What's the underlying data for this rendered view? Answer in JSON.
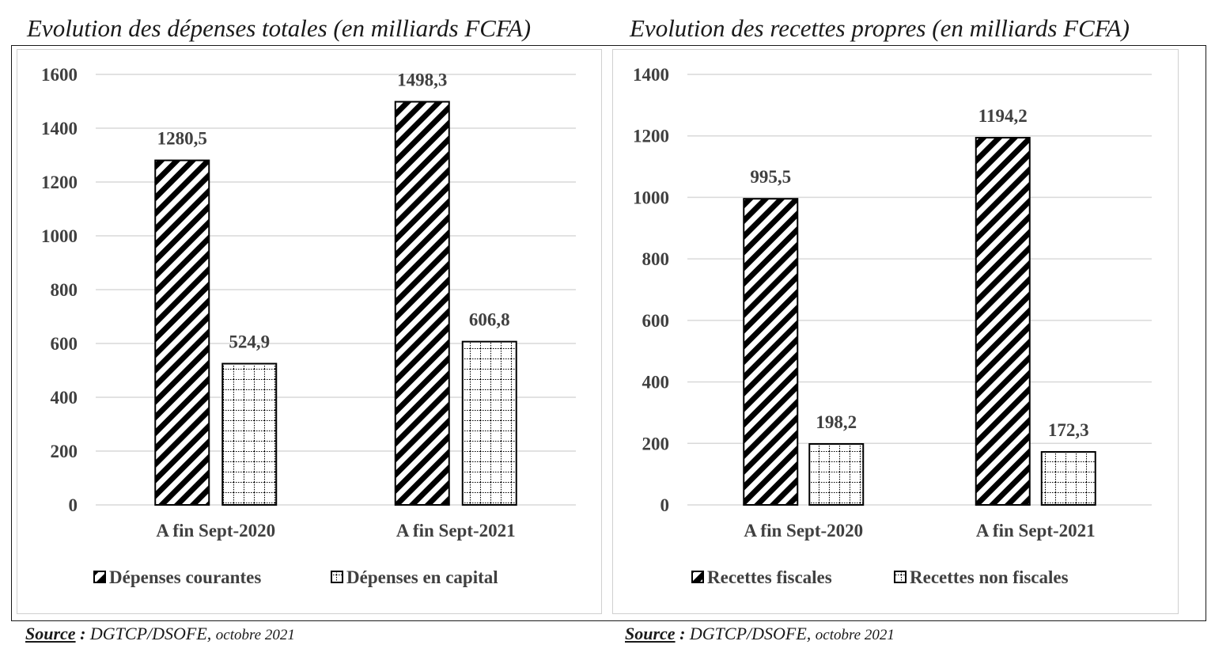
{
  "page": {
    "source_label": "Source",
    "source_sep": " : ",
    "source_org": "DGTCP/DSOFE, ",
    "source_date": "octobre 2021"
  },
  "chart_data": [
    {
      "type": "bar",
      "title": "Evolution des dépenses totales (en milliards FCFA)",
      "categories": [
        "A fin Sept-2020",
        "A fin Sept-2021"
      ],
      "series": [
        {
          "name": "Dépenses courantes",
          "values": [
            1280.5,
            1498.3
          ],
          "labels": [
            "1280,5",
            "1498,3"
          ],
          "pattern": "hatch"
        },
        {
          "name": "Dépenses en capital",
          "values": [
            524.9,
            606.8
          ],
          "labels": [
            "524,9",
            "606,8"
          ],
          "pattern": "grid"
        }
      ],
      "ylim": [
        0,
        1600
      ],
      "yticks": [
        0,
        200,
        400,
        600,
        800,
        1000,
        1200,
        1400,
        1600
      ],
      "grid": true,
      "legend": "bottom"
    },
    {
      "type": "bar",
      "title": "Evolution des recettes propres (en milliards FCFA)",
      "categories": [
        "A fin Sept-2020",
        "A fin Sept-2021"
      ],
      "series": [
        {
          "name": "Recettes fiscales",
          "values": [
            995.5,
            1194.2
          ],
          "labels": [
            "995,5",
            "1194,2"
          ],
          "pattern": "hatch"
        },
        {
          "name": "Recettes non fiscales",
          "values": [
            198.2,
            172.3
          ],
          "labels": [
            "198,2",
            "172,3"
          ],
          "pattern": "grid"
        }
      ],
      "ylim": [
        0,
        1400
      ],
      "yticks": [
        0,
        200,
        400,
        600,
        800,
        1000,
        1200,
        1400
      ],
      "grid": true,
      "legend": "bottom"
    }
  ],
  "colors": {
    "bar_stroke": "#000000",
    "gridline": "#d9d9d9",
    "axis_text": "#404040",
    "label_text": "#404040"
  }
}
